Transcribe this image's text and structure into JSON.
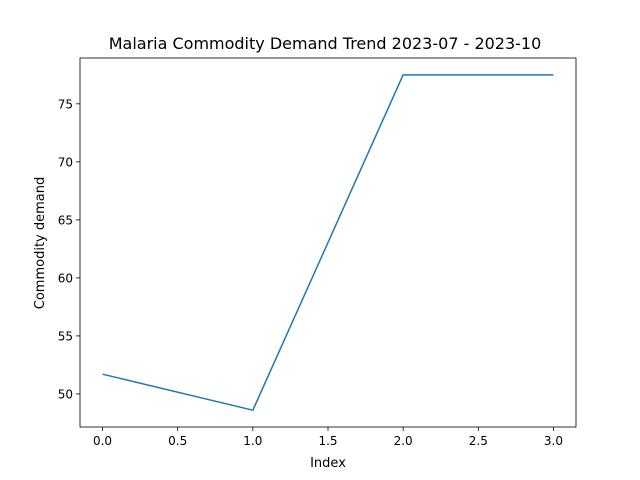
{
  "chart_data": {
    "type": "line",
    "title": "Malaria Commodity Demand Trend 2023-07 - 2023-10",
    "xlabel": "Index",
    "ylabel": "Commodity demand",
    "x": [
      0,
      1,
      2,
      3
    ],
    "series": [
      {
        "values": [
          51.7,
          48.6,
          77.5,
          77.5
        ],
        "color": "#1f77b4"
      }
    ],
    "xlim": [
      -0.15,
      3.15
    ],
    "ylim": [
      47.15,
      78.95
    ],
    "xticks": [
      0.0,
      0.5,
      1.0,
      1.5,
      2.0,
      2.5,
      3.0
    ],
    "xtick_labels": [
      "0.0",
      "0.5",
      "1.0",
      "1.5",
      "2.0",
      "2.5",
      "3.0"
    ],
    "yticks": [
      50,
      55,
      60,
      65,
      70,
      75
    ],
    "ytick_labels": [
      "50",
      "55",
      "60",
      "65",
      "70",
      "75"
    ],
    "grid": false,
    "legend": "none"
  }
}
